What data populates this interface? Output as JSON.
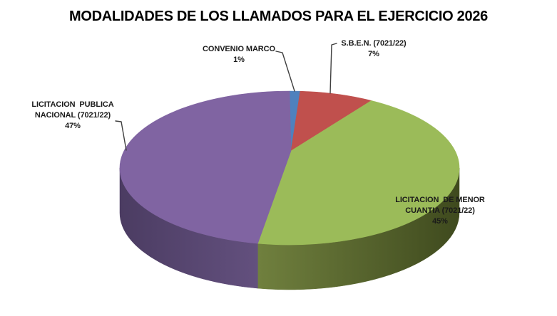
{
  "chart_data": {
    "type": "pie",
    "style": "3d",
    "title": "MODALIDADES DE LOS LLAMADOS PARA EL EJERCICIO 2026",
    "start_angle_deg": 0,
    "direction": "clockwise",
    "legend_position": "none",
    "background": "#FFFFFF",
    "label_color": "#1A1A1A",
    "leader_line_color": "#3F3F3F",
    "slices": [
      {
        "id": "convenio-marco",
        "callout": "CONVENIO MARCO",
        "pct": "1%",
        "value": 1,
        "color": "#4F81BD"
      },
      {
        "id": "sben",
        "callout": "S.B.E.N. (7021/22)",
        "pct": "7%",
        "value": 7,
        "color": "#C0504D"
      },
      {
        "id": "licitacion-menor-cuantia",
        "callout": "LICITACION  DE MENOR\nCUANTIA (7021/22)",
        "pct": "45%",
        "value": 45,
        "color": "#9BBB59",
        "side_gradient": [
          "#70803E",
          "#3F4A1E"
        ]
      },
      {
        "id": "licitacion-publica-nacional",
        "callout": "LICITACION  PUBLICA\nNACIONAL (7021/22)",
        "pct": "47%",
        "value": 47,
        "color": "#8064A2",
        "side_gradient": [
          "#4B3C62",
          "#63507E"
        ]
      }
    ]
  }
}
